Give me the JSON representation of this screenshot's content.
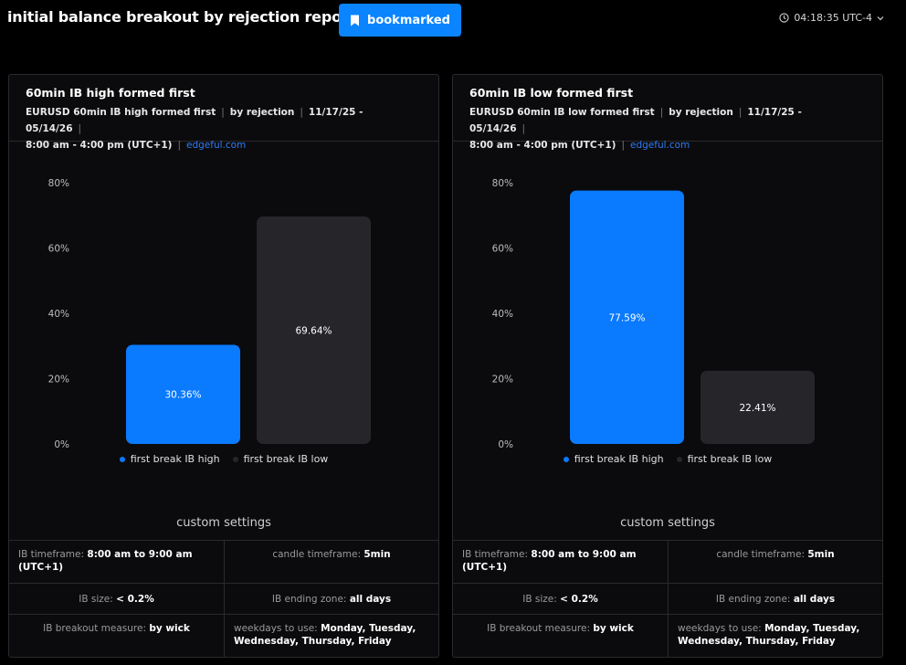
{
  "header": {
    "title": "initial balance breakout by rejection report",
    "bookmark_label": "bookmarked",
    "time": "04:18:35 UTC-4"
  },
  "panels": [
    {
      "title": "60min IB high formed first",
      "meta": {
        "instrument": "EURUSD 60min IB high formed first",
        "method": "by rejection",
        "dates": "11/17/25 - 05/14/26",
        "session": "8:00 am - 4:00 pm (UTC+1)",
        "source": "edgeful.com"
      },
      "chart_data": {
        "type": "bar",
        "categories": [
          "first break IB high",
          "first break IB low"
        ],
        "values": [
          30.36,
          69.64
        ],
        "value_labels": [
          "30.36%",
          "69.64%"
        ],
        "colors": [
          "#0a7aff",
          "#26262a"
        ],
        "ylim": [
          0,
          80
        ],
        "yticks": [
          "0%",
          "20%",
          "40%",
          "60%",
          "80%"
        ],
        "legend": [
          "first break IB high",
          "first break IB low"
        ]
      },
      "custom_settings_title": "custom settings",
      "settings": {
        "ib_timeframe_label": "IB timeframe:",
        "ib_timeframe_value": "8:00 am to 9:00 am (UTC+1)",
        "candle_timeframe_label": "candle timeframe:",
        "candle_timeframe_value": "5min",
        "ib_size_label": "IB size:",
        "ib_size_value": "< 0.2%",
        "ib_ending_zone_label": "IB ending zone:",
        "ib_ending_zone_value": "all days",
        "ib_breakout_label": "IB breakout measure:",
        "ib_breakout_value": "by wick",
        "weekdays_label": "weekdays to use:",
        "weekdays_value": "Monday, Tuesday, Wednesday, Thursday, Friday"
      }
    },
    {
      "title": "60min IB low formed first",
      "meta": {
        "instrument": "EURUSD 60min IB low formed first",
        "method": "by rejection",
        "dates": "11/17/25 - 05/14/26",
        "session": "8:00 am - 4:00 pm (UTC+1)",
        "source": "edgeful.com"
      },
      "chart_data": {
        "type": "bar",
        "categories": [
          "first break IB high",
          "first break IB low"
        ],
        "values": [
          77.59,
          22.41
        ],
        "value_labels": [
          "77.59%",
          "22.41%"
        ],
        "colors": [
          "#0a7aff",
          "#26262a"
        ],
        "ylim": [
          0,
          80
        ],
        "yticks": [
          "0%",
          "20%",
          "40%",
          "60%",
          "80%"
        ],
        "legend": [
          "first break IB high",
          "first break IB low"
        ]
      },
      "custom_settings_title": "custom settings",
      "settings": {
        "ib_timeframe_label": "IB timeframe:",
        "ib_timeframe_value": "8:00 am to 9:00 am (UTC+1)",
        "candle_timeframe_label": "candle timeframe:",
        "candle_timeframe_value": "5min",
        "ib_size_label": "IB size:",
        "ib_size_value": "< 0.2%",
        "ib_ending_zone_label": "IB ending zone:",
        "ib_ending_zone_value": "all days",
        "ib_breakout_label": "IB breakout measure:",
        "ib_breakout_value": "by wick",
        "weekdays_label": "weekdays to use:",
        "weekdays_value": "Monday, Tuesday, Wednesday, Thursday, Friday"
      }
    }
  ]
}
